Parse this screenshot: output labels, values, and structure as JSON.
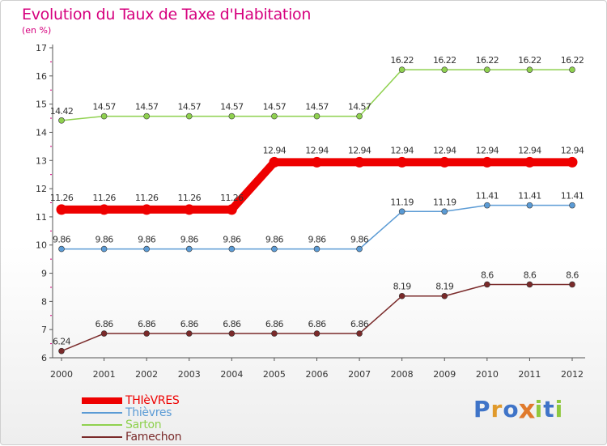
{
  "header": {
    "title": "Evolution du Taux de Taxe d'Habitation",
    "subtitle": "(en %)"
  },
  "colors": {
    "title": "#d6007e",
    "axis": "#555555",
    "grid_tick": "#d6007e"
  },
  "chart_data": {
    "type": "line",
    "x": [
      "2000",
      "2001",
      "2002",
      "2003",
      "2004",
      "2005",
      "2006",
      "2007",
      "2008",
      "2009",
      "2010",
      "2011",
      "2012"
    ],
    "ylim": [
      6,
      17
    ],
    "yticks": [
      6,
      7,
      8,
      9,
      10,
      11,
      12,
      13,
      14,
      15,
      16,
      17
    ],
    "series": [
      {
        "name": "THIèVRES",
        "color": "#ee0000",
        "labels": [
          "11.26",
          "11.26",
          "11.26",
          "11.26",
          "11.26",
          "12.94",
          "12.94",
          "12.94",
          "12.94",
          "12.94",
          "12.94",
          "12.94",
          "12.94"
        ],
        "values": [
          11.26,
          11.26,
          11.26,
          11.26,
          11.26,
          12.94,
          12.94,
          12.94,
          12.94,
          12.94,
          12.94,
          12.94,
          12.94
        ]
      },
      {
        "name": "Thièvres",
        "color": "#5b9bd5",
        "labels": [
          "9.86",
          "9.86",
          "9.86",
          "9.86",
          "9.86",
          "9.86",
          "9.86",
          "9.86",
          "11.19",
          "11.19",
          "11.41",
          "11.41",
          "11.41"
        ],
        "values": [
          9.86,
          9.86,
          9.86,
          9.86,
          9.86,
          9.86,
          9.86,
          9.86,
          11.19,
          11.19,
          11.41,
          11.41,
          11.41
        ]
      },
      {
        "name": "Sarton",
        "color": "#8fd14f",
        "labels": [
          "14.42",
          "14.57",
          "14.57",
          "14.57",
          "14.57",
          "14.57",
          "14.57",
          "14.57",
          "16.22",
          "16.22",
          "16.22",
          "16.22",
          "16.22"
        ],
        "values": [
          14.42,
          14.57,
          14.57,
          14.57,
          14.57,
          14.57,
          14.57,
          14.57,
          16.22,
          16.22,
          16.22,
          16.22,
          16.22
        ]
      },
      {
        "name": "Famechon",
        "color": "#7a2a2a",
        "labels": [
          "6.24",
          "6.86",
          "6.86",
          "6.86",
          "6.86",
          "6.86",
          "6.86",
          "6.86",
          "8.19",
          "8.19",
          "8.6",
          "8.6",
          "8.6"
        ],
        "values": [
          6.24,
          6.86,
          6.86,
          6.86,
          6.86,
          6.86,
          6.86,
          6.86,
          8.19,
          8.19,
          8.6,
          8.6,
          8.6
        ]
      }
    ]
  },
  "legend": [
    {
      "label": "THIèVRES",
      "color": "#ee0000",
      "label_color": "#ee0000"
    },
    {
      "label": "Thièvres",
      "color": "#5b9bd5",
      "label_color": "#5b9bd5"
    },
    {
      "label": "Sarton",
      "color": "#8fd14f",
      "label_color": "#8fd14f"
    },
    {
      "label": "Famechon",
      "color": "#7a2a2a",
      "label_color": "#7a2a2a"
    }
  ],
  "brand": {
    "letters": [
      "P",
      "r",
      "o",
      "x",
      "i",
      "t",
      "i"
    ],
    "colors": [
      "#3f74c8",
      "#e09a2c",
      "#3f74c8",
      "#e07a2c",
      "#8fc83f",
      "#3f74c8",
      "#8fc83f"
    ]
  }
}
